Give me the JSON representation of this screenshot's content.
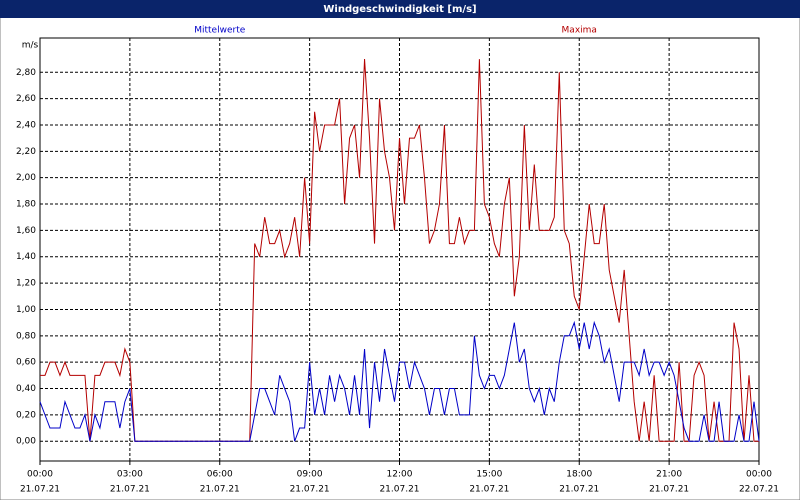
{
  "chart_data": {
    "type": "line",
    "title": "Windgeschwindigkeit [m/s]",
    "ylabel": "m/s",
    "x": [
      0,
      10,
      20,
      30,
      40,
      50,
      60,
      70,
      80,
      90,
      100,
      110,
      120,
      130,
      140,
      150,
      160,
      170,
      180,
      190,
      200,
      210,
      220,
      230,
      240,
      250,
      260,
      270,
      280,
      290,
      300,
      310,
      320,
      330,
      340,
      350,
      360,
      370,
      380,
      390,
      400,
      410,
      420,
      430,
      440,
      450,
      460,
      470,
      480,
      490,
      500,
      510,
      520,
      530,
      540,
      550,
      560,
      570,
      580,
      590,
      600,
      610,
      620,
      630,
      640,
      650,
      660,
      670,
      680,
      690,
      700,
      710,
      720,
      730,
      740,
      750,
      760,
      770,
      780,
      790,
      800,
      810,
      820,
      830,
      840,
      850,
      860,
      870,
      880,
      890,
      900,
      910,
      920,
      930,
      940,
      950,
      960,
      970,
      980,
      990,
      1000,
      1010,
      1020,
      1030,
      1040,
      1050,
      1060,
      1070,
      1080,
      1090,
      1100,
      1110,
      1120,
      1130,
      1140,
      1150,
      1160,
      1170,
      1180,
      1190,
      1200,
      1210,
      1220,
      1230,
      1240,
      1250,
      1260,
      1270,
      1280,
      1290,
      1300,
      1310,
      1320,
      1330,
      1340,
      1350,
      1360,
      1370,
      1380,
      1390,
      1400,
      1410,
      1420,
      1430,
      1440
    ],
    "series": [
      {
        "name": "Mittelwerte",
        "color": "#0000c8",
        "values": [
          0.3,
          0.2,
          0.1,
          0.1,
          0.1,
          0.3,
          0.2,
          0.1,
          0.1,
          0.2,
          0,
          0.2,
          0.1,
          0.3,
          0.3,
          0.3,
          0.1,
          0.3,
          0.4,
          0,
          0,
          0,
          0,
          0,
          0,
          0,
          0,
          0,
          0,
          0,
          0,
          0,
          0,
          0,
          0,
          0,
          0,
          0,
          0,
          0,
          0,
          0,
          0,
          0.2,
          0.4,
          0.4,
          0.3,
          0.2,
          0.5,
          0.4,
          0.3,
          0,
          0.1,
          0.1,
          0.6,
          0.2,
          0.4,
          0.2,
          0.5,
          0.3,
          0.5,
          0.4,
          0.2,
          0.5,
          0.2,
          0.7,
          0.1,
          0.6,
          0.3,
          0.7,
          0.5,
          0.3,
          0.6,
          0.6,
          0.4,
          0.6,
          0.5,
          0.4,
          0.2,
          0.4,
          0.4,
          0.2,
          0.4,
          0.4,
          0.2,
          0.2,
          0.2,
          0.8,
          0.5,
          0.4,
          0.5,
          0.5,
          0.4,
          0.5,
          0.7,
          0.9,
          0.6,
          0.7,
          0.4,
          0.3,
          0.4,
          0.2,
          0.4,
          0.3,
          0.6,
          0.8,
          0.8,
          0.9,
          0.7,
          0.9,
          0.7,
          0.9,
          0.8,
          0.6,
          0.7,
          0.5,
          0.3,
          0.6,
          0.6,
          0.6,
          0.5,
          0.7,
          0.5,
          0.6,
          0.6,
          0.5,
          0.6,
          0.5,
          0.3,
          0.1,
          0,
          0,
          0,
          0.2,
          0,
          0,
          0.3,
          0,
          0,
          0,
          0.2,
          0,
          0,
          0.3,
          0
        ]
      },
      {
        "name": "Maxima",
        "color": "#b40000",
        "values": [
          0.5,
          0.5,
          0.6,
          0.6,
          0.5,
          0.6,
          0.5,
          0.5,
          0.5,
          0.5,
          0,
          0.5,
          0.5,
          0.6,
          0.6,
          0.6,
          0.5,
          0.7,
          0.6,
          0,
          0,
          0,
          0,
          0,
          0,
          0,
          0,
          0,
          0,
          0,
          0,
          0,
          0,
          0,
          0,
          0,
          0,
          0,
          0,
          0,
          0,
          0,
          0,
          1.5,
          1.4,
          1.7,
          1.5,
          1.5,
          1.6,
          1.4,
          1.5,
          1.7,
          1.4,
          2.0,
          1.5,
          2.5,
          2.2,
          2.4,
          2.4,
          2.4,
          2.6,
          1.8,
          2.3,
          2.4,
          2.0,
          2.9,
          2.3,
          1.5,
          2.6,
          2.2,
          2.0,
          1.6,
          2.3,
          1.8,
          2.3,
          2.3,
          2.4,
          2.0,
          1.5,
          1.6,
          1.8,
          2.4,
          1.5,
          1.5,
          1.7,
          1.5,
          1.6,
          1.6,
          2.9,
          1.8,
          1.7,
          1.5,
          1.4,
          1.8,
          2.0,
          1.1,
          1.4,
          2.4,
          1.6,
          2.1,
          1.6,
          1.6,
          1.6,
          1.7,
          2.8,
          1.6,
          1.5,
          1.1,
          1.0,
          1.4,
          1.8,
          1.5,
          1.5,
          1.8,
          1.3,
          1.1,
          0.9,
          1.3,
          0.8,
          0.3,
          0,
          0.3,
          0,
          0.5,
          0,
          0,
          0,
          0,
          0.6,
          0,
          0,
          0.5,
          0.6,
          0.5,
          0,
          0.3,
          0,
          0,
          0,
          0.9,
          0.7,
          0,
          0.5,
          0,
          0
        ]
      }
    ],
    "xlim": [
      0,
      1440
    ],
    "xticks": [
      {
        "value": 0,
        "label": "00:00"
      },
      {
        "value": 180,
        "label": "03:00"
      },
      {
        "value": 360,
        "label": "06:00"
      },
      {
        "value": 540,
        "label": "09:00"
      },
      {
        "value": 720,
        "label": "12:00"
      },
      {
        "value": 900,
        "label": "15:00"
      },
      {
        "value": 1080,
        "label": "18:00"
      },
      {
        "value": 1260,
        "label": "21:00"
      },
      {
        "value": 1440,
        "label": "00:00"
      }
    ],
    "xtick_dates": [
      "21.07.21",
      "21.07.21",
      "21.07.21",
      "21.07.21",
      "21.07.21",
      "21.07.21",
      "21.07.21",
      "21.07.21",
      "22.07.21"
    ],
    "ylim": [
      -0.15,
      3.06
    ],
    "yticks": [
      {
        "value": 0,
        "label": "0,00"
      },
      {
        "value": 0.2,
        "label": "0,20"
      },
      {
        "value": 0.4,
        "label": "0,40"
      },
      {
        "value": 0.6,
        "label": "0,60"
      },
      {
        "value": 0.8,
        "label": "0,80"
      },
      {
        "value": 1.0,
        "label": "1,00"
      },
      {
        "value": 1.2,
        "label": "1,20"
      },
      {
        "value": 1.4,
        "label": "1,40"
      },
      {
        "value": 1.6,
        "label": "1,60"
      },
      {
        "value": 1.8,
        "label": "1,80"
      },
      {
        "value": 2.0,
        "label": "2,00"
      },
      {
        "value": 2.2,
        "label": "2,20"
      },
      {
        "value": 2.4,
        "label": "2,40"
      },
      {
        "value": 2.6,
        "label": "2,60"
      },
      {
        "value": 2.8,
        "label": "2,80"
      }
    ],
    "grid": true
  }
}
